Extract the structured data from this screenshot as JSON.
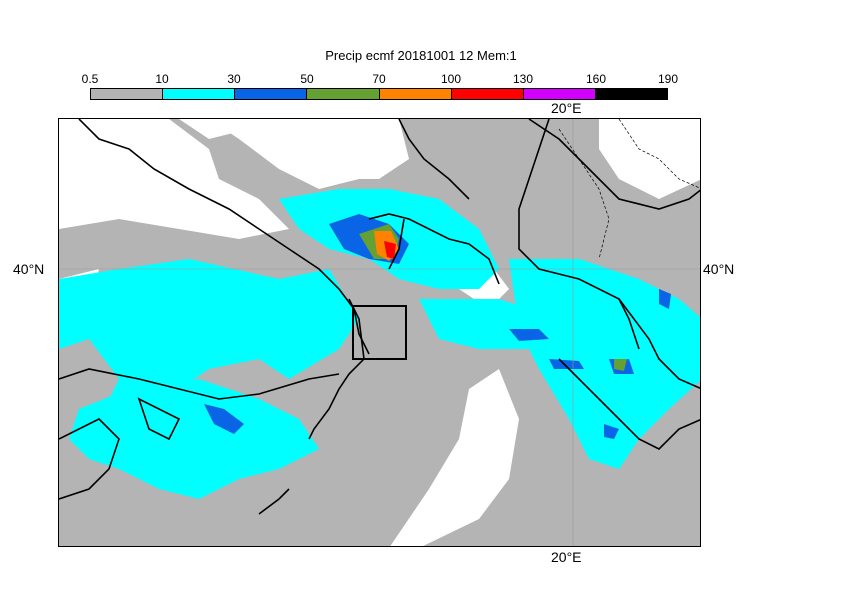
{
  "title": "Precip ecmf 20181001 12 Mem:1",
  "legend": {
    "ticks": [
      "0.5",
      "10",
      "30",
      "50",
      "70",
      "100",
      "130",
      "160",
      "190"
    ],
    "colors": [
      "#b4b4b4",
      "#00ffff",
      "#0a64e6",
      "#64a032",
      "#ff8200",
      "#ff0000",
      "#d200ff",
      "#000000"
    ]
  },
  "axes": {
    "lon_top": "20°E",
    "lon_bottom": "20°E",
    "lat_left": "40°N",
    "lat_right": "40°N"
  }
}
